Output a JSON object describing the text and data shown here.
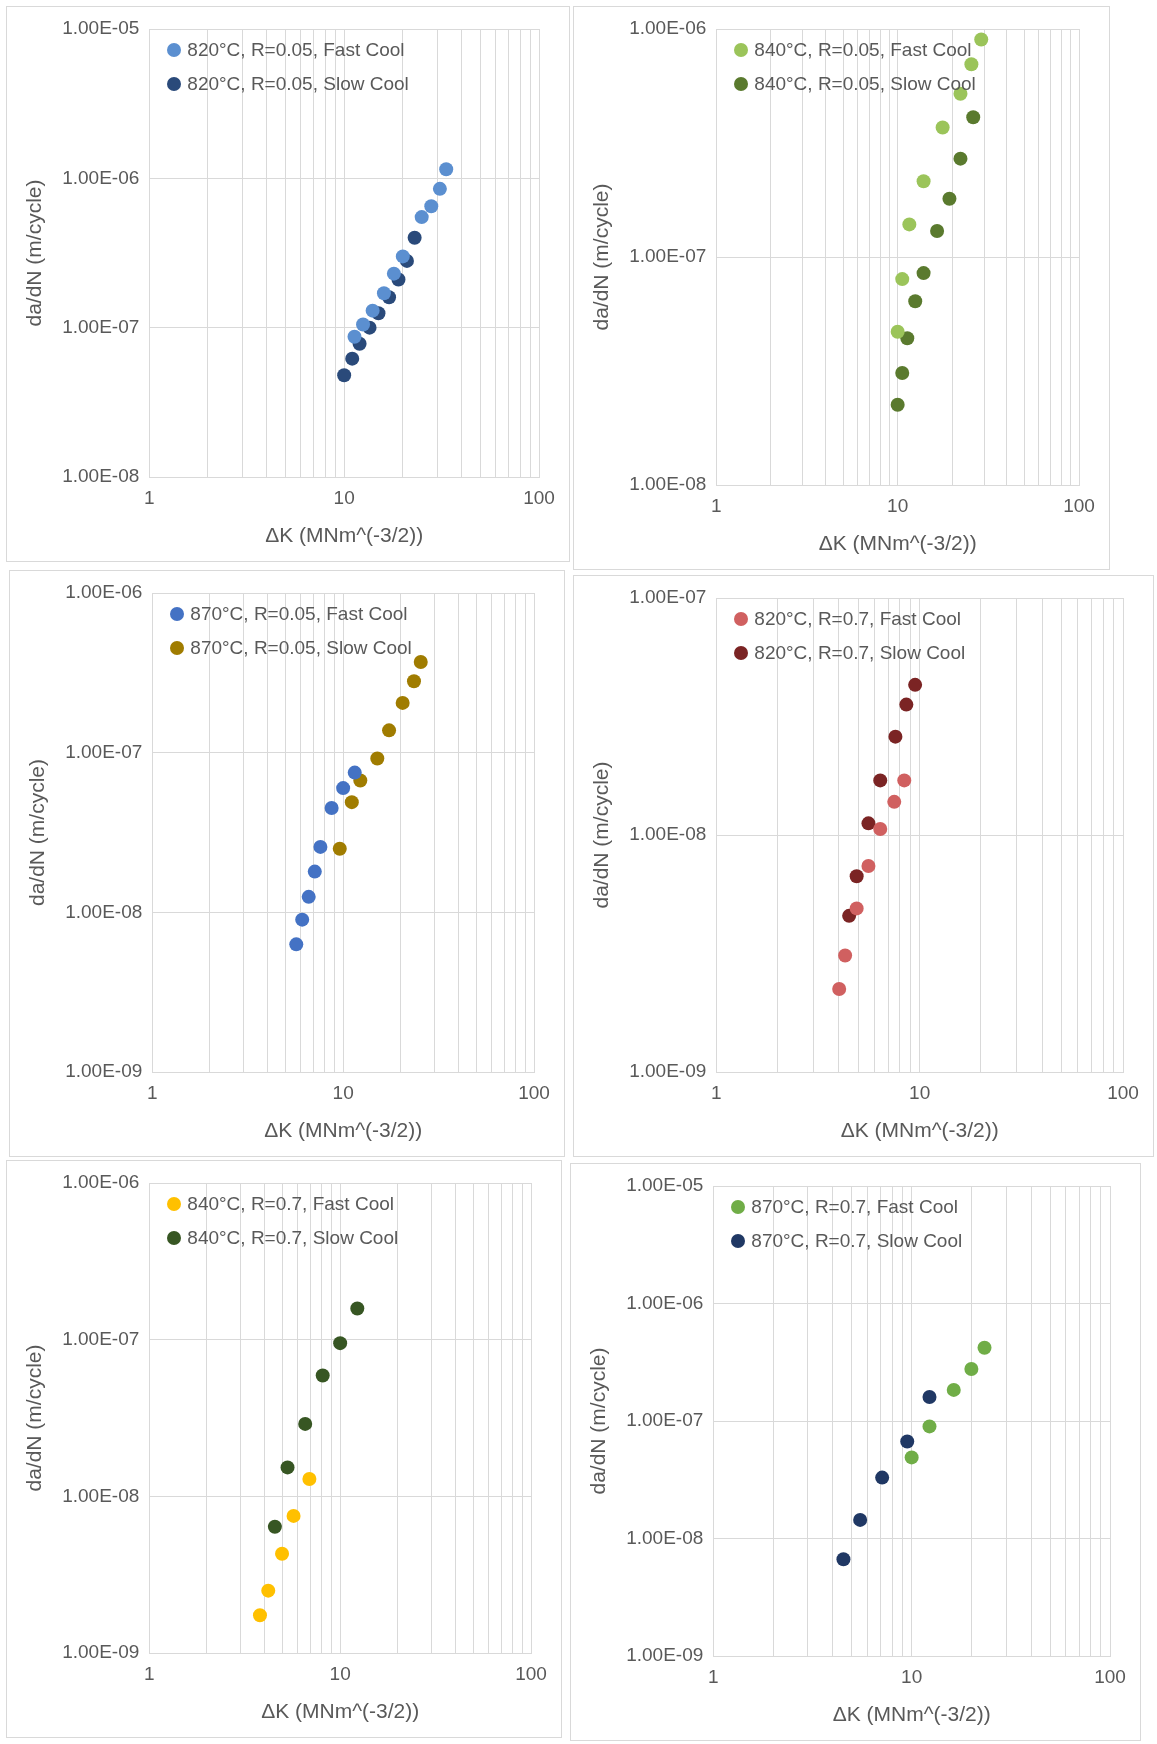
{
  "chart_data": [
    {
      "type": "scatter",
      "xlabel": "ΔK (MNm^(-3/2))",
      "ylabel": "da/dN (m/cycle)",
      "log": "xy",
      "grid": true,
      "legend": "top left",
      "marker": "circle",
      "xlim": [
        1,
        100
      ],
      "xticks": [
        1,
        {
          "value": 2,
          "label": null
        },
        {
          "value": 3,
          "label": null
        },
        {
          "value": 4,
          "label": null
        },
        {
          "value": 5,
          "label": null
        },
        {
          "value": 6,
          "label": null
        },
        {
          "value": 7,
          "label": null
        },
        {
          "value": 8,
          "label": null
        },
        {
          "value": 9,
          "label": null
        },
        10,
        {
          "value": 20,
          "label": null
        },
        {
          "value": 30,
          "label": null
        },
        {
          "value": 40,
          "label": null
        },
        {
          "value": 50,
          "label": null
        },
        {
          "value": 60,
          "label": null
        },
        {
          "value": 70,
          "label": null
        },
        {
          "value": 80,
          "label": null
        },
        {
          "value": 90,
          "label": null
        },
        100
      ],
      "ylim": [
        1e-08,
        1e-05
      ],
      "yticks": [
        {
          "value": 1e-08,
          "label": "1.00E-08"
        },
        {
          "value": 1e-07,
          "label": "1.00E-07"
        },
        {
          "value": 1e-06,
          "label": "1.00E-06"
        },
        {
          "value": 1e-05,
          "label": "1.00E-05"
        }
      ],
      "series": [
        {
          "name": "820°C, R=0.05, Fast Cool",
          "color": "#5b8fd0",
          "x": [
            11.3,
            12.5,
            14,
            16,
            18,
            20,
            25,
            28,
            31,
            33.4
          ],
          "values": [
            8.7e-08,
            1.05e-07,
            1.3e-07,
            1.7e-07,
            2.3e-07,
            3e-07,
            5.5e-07,
            6.5e-07,
            8.5e-07,
            1.15e-06
          ]
        },
        {
          "name": "820°C, R=0.05, Slow Cool",
          "color": "#2a4a7a",
          "x": [
            10,
            11,
            12,
            13.5,
            15,
            17,
            19,
            21,
            23
          ],
          "values": [
            4.8e-08,
            6.2e-08,
            7.8e-08,
            1e-07,
            1.25e-07,
            1.6e-07,
            2.1e-07,
            2.8e-07,
            4e-07
          ]
        }
      ]
    },
    {
      "type": "scatter",
      "xlabel": "ΔK (MNm^(-3/2))",
      "ylabel": "da/dN (m/cycle)",
      "log": "xy",
      "grid": true,
      "legend": "top left",
      "marker": "circle",
      "xlim": [
        1,
        100
      ],
      "xticks": [
        1,
        {
          "value": 2,
          "label": null
        },
        {
          "value": 3,
          "label": null
        },
        {
          "value": 4,
          "label": null
        },
        {
          "value": 5,
          "label": null
        },
        {
          "value": 6,
          "label": null
        },
        {
          "value": 7,
          "label": null
        },
        {
          "value": 8,
          "label": null
        },
        {
          "value": 9,
          "label": null
        },
        10,
        {
          "value": 20,
          "label": null
        },
        {
          "value": 30,
          "label": null
        },
        {
          "value": 40,
          "label": null
        },
        {
          "value": 50,
          "label": null
        },
        {
          "value": 60,
          "label": null
        },
        {
          "value": 70,
          "label": null
        },
        {
          "value": 80,
          "label": null
        },
        {
          "value": 90,
          "label": null
        },
        100
      ],
      "ylim": [
        1e-08,
        1e-06
      ],
      "yticks": [
        {
          "value": 1e-08,
          "label": "1.00E-08"
        },
        {
          "value": 1e-07,
          "label": "1.00E-07"
        },
        {
          "value": 1e-06,
          "label": "1.00E-06"
        }
      ],
      "series": [
        {
          "name": "840°C, R=0.05, Fast Cool",
          "color": "#9bc45a",
          "x": [
            10,
            10.6,
            11.6,
            13.9,
            17.7,
            22.2,
            25.5,
            28.9
          ],
          "values": [
            4.7e-08,
            8e-08,
            1.39e-07,
            2.15e-07,
            3.7e-07,
            5.2e-07,
            7e-07,
            9e-07
          ]
        },
        {
          "name": "840°C, R=0.05, Slow Cool",
          "color": "#5a7a2e",
          "x": [
            10,
            10.6,
            11.3,
            12.5,
            13.9,
            16.5,
            19.3,
            22.2,
            26.1
          ],
          "values": [
            2.25e-08,
            3.1e-08,
            4.4e-08,
            6.4e-08,
            8.5e-08,
            1.3e-07,
            1.8e-07,
            2.7e-07,
            4.1e-07
          ]
        }
      ]
    },
    {
      "type": "scatter",
      "xlabel": "ΔK (MNm^(-3/2))",
      "ylabel": "da/dN (m/cycle)",
      "log": "xy",
      "grid": true,
      "legend": "top left",
      "marker": "circle",
      "xlim": [
        1,
        100
      ],
      "xticks": [
        1,
        {
          "value": 2,
          "label": null
        },
        {
          "value": 3,
          "label": null
        },
        {
          "value": 4,
          "label": null
        },
        {
          "value": 5,
          "label": null
        },
        {
          "value": 6,
          "label": null
        },
        {
          "value": 7,
          "label": null
        },
        {
          "value": 8,
          "label": null
        },
        {
          "value": 9,
          "label": null
        },
        10,
        {
          "value": 20,
          "label": null
        },
        {
          "value": 30,
          "label": null
        },
        {
          "value": 40,
          "label": null
        },
        {
          "value": 50,
          "label": null
        },
        {
          "value": 60,
          "label": null
        },
        {
          "value": 70,
          "label": null
        },
        {
          "value": 80,
          "label": null
        },
        {
          "value": 90,
          "label": null
        },
        100
      ],
      "ylim": [
        1e-09,
        1e-06
      ],
      "yticks": [
        {
          "value": 1e-09,
          "label": "1.00E-09"
        },
        {
          "value": 1e-08,
          "label": "1.00E-08"
        },
        {
          "value": 1e-07,
          "label": "1.00E-07"
        },
        {
          "value": 1e-06,
          "label": "1.00E-06"
        }
      ],
      "series": [
        {
          "name": "870°C, R=0.05, Fast Cool",
          "color": "#4472c4",
          "x": [
            5.68,
            6.1,
            6.6,
            7.1,
            7.6,
            8.7,
            10,
            11.5
          ],
          "values": [
            6.3e-09,
            9e-09,
            1.25e-08,
            1.8e-08,
            2.57e-08,
            4.5e-08,
            6e-08,
            7.5e-08
          ]
        },
        {
          "name": "870°C, R=0.05, Slow Cool",
          "color": "#a07c00",
          "x": [
            9.6,
            11.1,
            12.3,
            15.1,
            17.4,
            20.5,
            23.5,
            25.5
          ],
          "values": [
            2.5e-08,
            4.9e-08,
            6.7e-08,
            9.2e-08,
            1.38e-07,
            2.05e-07,
            2.8e-07,
            3.7e-07
          ]
        }
      ]
    },
    {
      "type": "scatter",
      "xlabel": "ΔK (MNm^(-3/2))",
      "ylabel": "da/dN (m/cycle)",
      "log": "xy",
      "grid": true,
      "legend": "top left",
      "marker": "circle",
      "xlim": [
        1,
        100
      ],
      "xticks": [
        1,
        {
          "value": 2,
          "label": null
        },
        {
          "value": 3,
          "label": null
        },
        {
          "value": 4,
          "label": null
        },
        {
          "value": 5,
          "label": null
        },
        {
          "value": 6,
          "label": null
        },
        {
          "value": 7,
          "label": null
        },
        {
          "value": 8,
          "label": null
        },
        {
          "value": 9,
          "label": null
        },
        10,
        {
          "value": 20,
          "label": null
        },
        {
          "value": 30,
          "label": null
        },
        {
          "value": 40,
          "label": null
        },
        {
          "value": 50,
          "label": null
        },
        {
          "value": 60,
          "label": null
        },
        {
          "value": 70,
          "label": null
        },
        {
          "value": 80,
          "label": null
        },
        {
          "value": 90,
          "label": null
        },
        100
      ],
      "ylim": [
        1e-09,
        1e-07
      ],
      "yticks": [
        {
          "value": 1e-09,
          "label": "1.00E-09"
        },
        {
          "value": 1e-08,
          "label": "1.00E-08"
        },
        {
          "value": 1e-07,
          "label": "1.00E-07"
        }
      ],
      "series": [
        {
          "name": "820°C, R=0.7, Fast Cool",
          "color": "#d06060",
          "x": [
            4.02,
            4.3,
            4.9,
            5.6,
            6.4,
            7.5,
            8.4
          ],
          "values": [
            2.24e-09,
            3.1e-09,
            4.9e-09,
            7.4e-09,
            1.06e-08,
            1.38e-08,
            1.7e-08
          ]
        },
        {
          "name": "820°C, R=0.7, Slow Cool",
          "color": "#7b2424",
          "x": [
            4.5,
            4.9,
            5.6,
            6.4,
            7.6,
            8.6,
            9.5
          ],
          "values": [
            4.56e-09,
            6.7e-09,
            1.12e-08,
            1.7e-08,
            2.6e-08,
            3.55e-08,
            4.3e-08
          ]
        }
      ]
    },
    {
      "type": "scatter",
      "xlabel": "ΔK (MNm^(-3/2))",
      "ylabel": "da/dN (m/cycle)",
      "log": "xy",
      "grid": true,
      "legend": "top left",
      "marker": "circle",
      "xlim": [
        1,
        100
      ],
      "xticks": [
        1,
        {
          "value": 2,
          "label": null
        },
        {
          "value": 3,
          "label": null
        },
        {
          "value": 4,
          "label": null
        },
        {
          "value": 5,
          "label": null
        },
        {
          "value": 6,
          "label": null
        },
        {
          "value": 7,
          "label": null
        },
        {
          "value": 8,
          "label": null
        },
        {
          "value": 9,
          "label": null
        },
        10,
        {
          "value": 20,
          "label": null
        },
        {
          "value": 30,
          "label": null
        },
        {
          "value": 40,
          "label": null
        },
        {
          "value": 50,
          "label": null
        },
        {
          "value": 60,
          "label": null
        },
        {
          "value": 70,
          "label": null
        },
        {
          "value": 80,
          "label": null
        },
        {
          "value": 90,
          "label": null
        },
        100
      ],
      "ylim": [
        1e-09,
        1e-06
      ],
      "yticks": [
        {
          "value": 1e-09,
          "label": "1.00E-09"
        },
        {
          "value": 1e-08,
          "label": "1.00E-08"
        },
        {
          "value": 1e-07,
          "label": "1.00E-07"
        },
        {
          "value": 1e-06,
          "label": "1.00E-06"
        }
      ],
      "series": [
        {
          "name": "840°C, R=0.7, Fast Cool",
          "color": "#ffc000",
          "x": [
            3.8,
            4.2,
            4.96,
            5.7,
            6.9
          ],
          "values": [
            1.74e-09,
            2.5e-09,
            4.3e-09,
            7.5e-09,
            1.29e-08
          ]
        },
        {
          "name": "840°C, R=0.7, Slow Cool",
          "color": "#375623",
          "x": [
            4.55,
            5.3,
            6.56,
            8.1,
            10,
            12.3
          ],
          "values": [
            6.4e-09,
            1.53e-08,
            2.9e-08,
            5.9e-08,
            9.5e-08,
            1.58e-07
          ]
        }
      ]
    },
    {
      "type": "scatter",
      "xlabel": "ΔK (MNm^(-3/2))",
      "ylabel": "da/dN (m/cycle)",
      "log": "xy",
      "grid": true,
      "legend": "top left",
      "marker": "circle",
      "xlim": [
        1,
        100
      ],
      "xticks": [
        1,
        {
          "value": 2,
          "label": null
        },
        {
          "value": 3,
          "label": null
        },
        {
          "value": 4,
          "label": null
        },
        {
          "value": 5,
          "label": null
        },
        {
          "value": 6,
          "label": null
        },
        {
          "value": 7,
          "label": null
        },
        {
          "value": 8,
          "label": null
        },
        {
          "value": 9,
          "label": null
        },
        10,
        {
          "value": 20,
          "label": null
        },
        {
          "value": 30,
          "label": null
        },
        {
          "value": 40,
          "label": null
        },
        {
          "value": 50,
          "label": null
        },
        {
          "value": 60,
          "label": null
        },
        {
          "value": 70,
          "label": null
        },
        {
          "value": 80,
          "label": null
        },
        {
          "value": 90,
          "label": null
        },
        100
      ],
      "ylim": [
        1e-09,
        1e-05
      ],
      "yticks": [
        {
          "value": 1e-09,
          "label": "1.00E-09"
        },
        {
          "value": 1e-08,
          "label": "1.00E-08"
        },
        {
          "value": 1e-07,
          "label": "1.00E-07"
        },
        {
          "value": 1e-06,
          "label": "1.00E-06"
        },
        {
          "value": 1e-05,
          "label": "1.00E-05"
        }
      ],
      "series": [
        {
          "name": "870°C, R=0.7, Fast Cool",
          "color": "#70ad47",
          "x": [
            10,
            12.3,
            16.3,
            20,
            23.3
          ],
          "values": [
            4.9e-08,
            9e-08,
            1.84e-07,
            2.77e-07,
            4.2e-07
          ]
        },
        {
          "name": "870°C, R=0.7, Slow Cool",
          "color": "#203864",
          "x": [
            4.53,
            5.5,
            7.1,
            9.5,
            12.3
          ],
          "values": [
            6.65e-09,
            1.44e-08,
            3.3e-08,
            6.7e-08,
            1.6e-07
          ]
        }
      ]
    }
  ]
}
